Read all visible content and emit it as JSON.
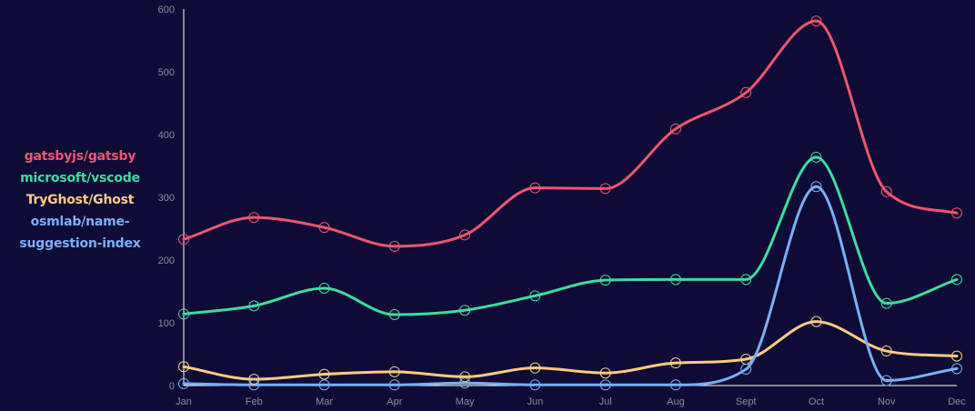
{
  "colors": {
    "background": "#0e0c36",
    "axis": "#ffffff",
    "tick_label": "#8a8aa0"
  },
  "chart_data": {
    "type": "line",
    "title": "",
    "xlabel": "",
    "ylabel": "",
    "categories": [
      "Jan",
      "Feb",
      "Mar",
      "Apr",
      "May",
      "Jun",
      "Jul",
      "Aug",
      "Sept",
      "Oct",
      "Nov",
      "Dec"
    ],
    "ylim": [
      0,
      600
    ],
    "yticks": [
      0,
      100,
      200,
      300,
      400,
      500,
      600
    ],
    "grid": false,
    "smooth": true,
    "legend_position": "left",
    "series": [
      {
        "name": "gatsbyjs/gatsby",
        "color": "#f0546e",
        "values": [
          233,
          268,
          252,
          222,
          240,
          315,
          314,
          409,
          467,
          581,
          309,
          275
        ]
      },
      {
        "name": "microsoft/vscode",
        "color": "#3ddca0",
        "values": [
          114,
          127,
          155,
          113,
          120,
          143,
          168,
          169,
          169,
          364,
          131,
          169
        ]
      },
      {
        "name": "TryGhost/Ghost",
        "color": "#fecb82",
        "values": [
          30,
          10,
          18,
          22,
          14,
          28,
          20,
          36,
          42,
          102,
          55,
          47
        ]
      },
      {
        "name": "osmlab/name-suggestion-index",
        "color": "#7aaff5",
        "values": [
          3,
          1,
          1,
          1,
          4,
          1,
          1,
          1,
          26,
          317,
          8,
          27
        ]
      }
    ]
  }
}
